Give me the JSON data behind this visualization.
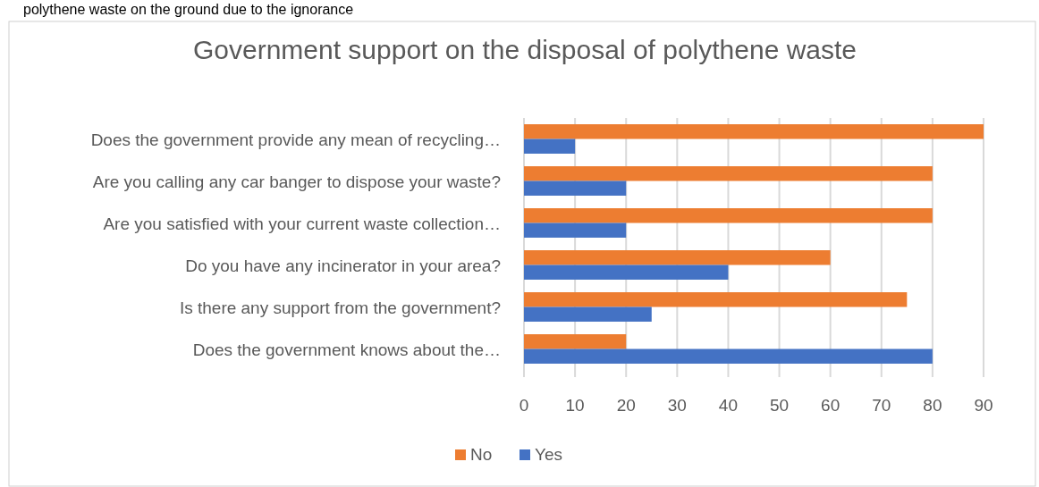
{
  "chart_data": {
    "type": "bar",
    "orientation": "horizontal",
    "title": "Government support on the disposal of polythene waste",
    "annotations": [
      "polythene waste on the ground due to the ignorance"
    ],
    "categories": [
      "Does the government provide any mean of recycling…",
      "Are you calling any car banger to dispose your waste?",
      "Are you satisfied with your current waste collection…",
      "Do you have any incinerator in your area?",
      "Is there any support from the government?",
      "Does the government knows about the…"
    ],
    "series": [
      {
        "name": "No",
        "color": "#ed7d31",
        "values": [
          90,
          80,
          80,
          60,
          75,
          20
        ]
      },
      {
        "name": "Yes",
        "color": "#4472c4",
        "values": [
          10,
          20,
          20,
          40,
          25,
          80
        ]
      }
    ],
    "xlim": [
      0,
      90
    ],
    "xticks": [
      0,
      10,
      20,
      30,
      40,
      50,
      60,
      70,
      80,
      90
    ],
    "grid": "x",
    "legend": "bottom"
  }
}
